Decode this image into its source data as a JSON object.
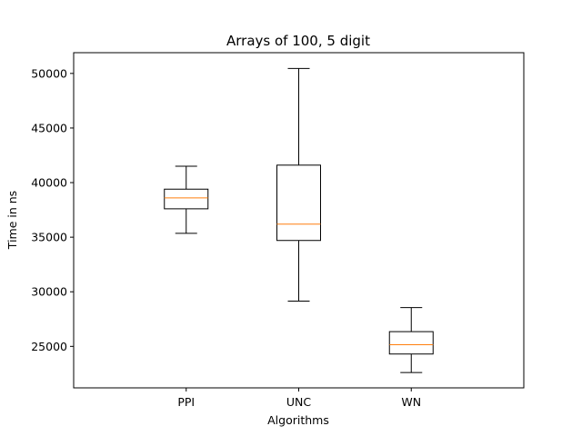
{
  "chart_data": {
    "type": "box",
    "title": "Arrays of 100, 5 digit",
    "xlabel": "Algorithms",
    "ylabel": "Time in ns",
    "ylim": [
      21200,
      51900
    ],
    "yticks": [
      25000,
      30000,
      35000,
      40000,
      45000,
      50000
    ],
    "categories": [
      "PPI",
      "UNC",
      "WN"
    ],
    "boxes": [
      {
        "name": "PPI",
        "whisker_low": 35350,
        "q1": 37600,
        "median": 38600,
        "q3": 39400,
        "whisker_high": 41500
      },
      {
        "name": "UNC",
        "whisker_low": 29150,
        "q1": 34700,
        "median": 36200,
        "q3": 41600,
        "whisker_high": 50450
      },
      {
        "name": "WN",
        "whisker_low": 22600,
        "q1": 24300,
        "median": 25150,
        "q3": 26350,
        "whisker_high": 28550
      }
    ],
    "grid": false,
    "colors": {
      "box": "#000000",
      "median": "#ff7f0e"
    }
  }
}
